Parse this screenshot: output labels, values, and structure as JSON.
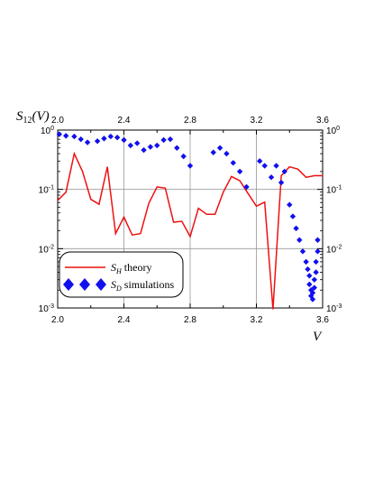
{
  "chart_data": {
    "type": "line",
    "ylabel": {
      "main": "S",
      "sub": "12",
      "rest": "(V)"
    },
    "xlabel": "V",
    "xlim": [
      2.0,
      3.6
    ],
    "ylim": [
      0.001,
      1.0
    ],
    "yscale": "log",
    "grid": true,
    "x_ticks": [
      "2.0",
      "2.4",
      "2.8",
      "3.2",
      "3.6"
    ],
    "x_tick_values": [
      2.0,
      2.4,
      2.8,
      3.2,
      3.6
    ],
    "y_ticks": [
      {
        "value": 1,
        "base": "10",
        "exp": "0"
      },
      {
        "value": 0.1,
        "base": "10",
        "exp": "-1"
      },
      {
        "value": 0.01,
        "base": "10",
        "exp": "-2"
      },
      {
        "value": 0.001,
        "base": "10",
        "exp": "-3"
      }
    ],
    "legend": {
      "position": "bottom-left",
      "entries": [
        {
          "symbol": "S",
          "sub": "H",
          "text": " theory"
        },
        {
          "symbol": "S",
          "sub": "D",
          "text": " simulations"
        }
      ]
    },
    "colors": {
      "theory": "#ee1111",
      "simulations": "#1010ee"
    },
    "series": [
      {
        "name": "theory",
        "x": [
          2.0,
          2.05,
          2.1,
          2.15,
          2.2,
          2.25,
          2.3,
          2.35,
          2.4,
          2.45,
          2.5,
          2.55,
          2.6,
          2.65,
          2.7,
          2.75,
          2.8,
          2.85,
          2.9,
          2.95,
          3.0,
          3.05,
          3.1,
          3.15,
          3.2,
          3.25,
          3.3,
          3.35,
          3.4,
          3.45,
          3.5,
          3.55,
          3.6
        ],
        "y": [
          0.065,
          0.09,
          0.4,
          0.2,
          0.068,
          0.056,
          0.24,
          0.018,
          0.034,
          0.017,
          0.018,
          0.058,
          0.11,
          0.105,
          0.028,
          0.029,
          0.016,
          0.048,
          0.038,
          0.038,
          0.09,
          0.165,
          0.14,
          0.085,
          0.052,
          0.061,
          0.00095,
          0.17,
          0.24,
          0.22,
          0.16,
          0.17,
          0.17
        ]
      },
      {
        "name": "simulations",
        "x": [
          2.01,
          2.05,
          2.1,
          2.14,
          2.18,
          2.24,
          2.28,
          2.32,
          2.36,
          2.4,
          2.44,
          2.48,
          2.52,
          2.56,
          2.6,
          2.64,
          2.68,
          2.72,
          2.76,
          2.8,
          2.94,
          2.98,
          3.02,
          3.06,
          3.1,
          3.14,
          3.22,
          3.25,
          3.29,
          3.32,
          3.35,
          3.37,
          3.4,
          3.42,
          3.44,
          3.46,
          3.48,
          3.5,
          3.51,
          3.52,
          3.52,
          3.53,
          3.53,
          3.54,
          3.54,
          3.55,
          3.55,
          3.56,
          3.56,
          3.57,
          3.57
        ],
        "y": [
          0.85,
          0.8,
          0.78,
          0.7,
          0.62,
          0.65,
          0.72,
          0.78,
          0.75,
          0.68,
          0.55,
          0.6,
          0.46,
          0.52,
          0.55,
          0.68,
          0.7,
          0.5,
          0.36,
          0.25,
          0.42,
          0.5,
          0.4,
          0.28,
          0.2,
          0.11,
          0.3,
          0.25,
          0.16,
          0.25,
          0.13,
          0.2,
          0.055,
          0.035,
          0.022,
          0.014,
          0.009,
          0.006,
          0.0045,
          0.0035,
          0.0025,
          0.002,
          0.0016,
          0.0014,
          0.0018,
          0.0022,
          0.003,
          0.004,
          0.006,
          0.009,
          0.014
        ]
      }
    ]
  }
}
